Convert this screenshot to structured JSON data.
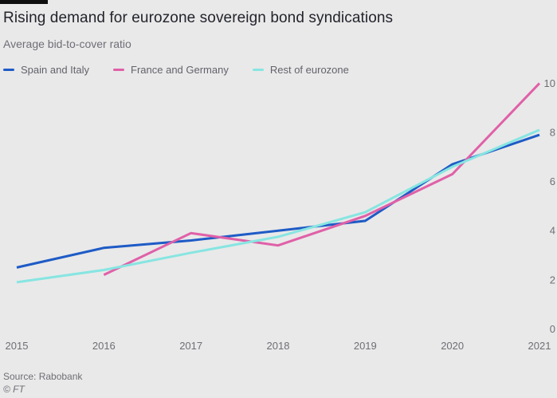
{
  "header": {
    "title": "Rising demand for eurozone sovereign bond syndications",
    "subtitle": "Average bid-to-cover ratio"
  },
  "legend": [
    {
      "label": "Spain and Italy",
      "color": "#1e5bc6"
    },
    {
      "label": "France and Germany",
      "color": "#e060a8"
    },
    {
      "label": "Rest of eurozone",
      "color": "#87e5e1"
    }
  ],
  "footer": {
    "source": "Source: Rabobank",
    "credit": "© FT"
  },
  "colors": {
    "background": "#e9e9e9",
    "title_text": "#23242c",
    "muted_text": "#6f6e76",
    "top_bar": "#0d0d0d"
  },
  "chart_data": {
    "type": "line",
    "title": "Rising demand for eurozone sovereign bond syndications",
    "subtitle": "Average bid-to-cover ratio",
    "x": [
      2015,
      2016,
      2017,
      2018,
      2019,
      2020,
      2021
    ],
    "series": [
      {
        "name": "Spain and Italy",
        "color": "#1e5bc6",
        "values": [
          2.5,
          3.3,
          3.6,
          4.0,
          4.4,
          6.7,
          7.9
        ]
      },
      {
        "name": "France and Germany",
        "color": "#e060a8",
        "values": [
          null,
          2.2,
          3.9,
          3.4,
          4.6,
          6.3,
          10
        ]
      },
      {
        "name": "Rest of eurozone",
        "color": "#87e5e1",
        "values": [
          1.9,
          2.4,
          3.1,
          3.75,
          4.75,
          6.6,
          8.1
        ]
      }
    ],
    "ylim": [
      0,
      10
    ],
    "yticks": [
      0,
      2,
      4,
      6,
      8,
      10
    ],
    "y_axis_side": "right",
    "grid": false,
    "legend_position": "top"
  }
}
